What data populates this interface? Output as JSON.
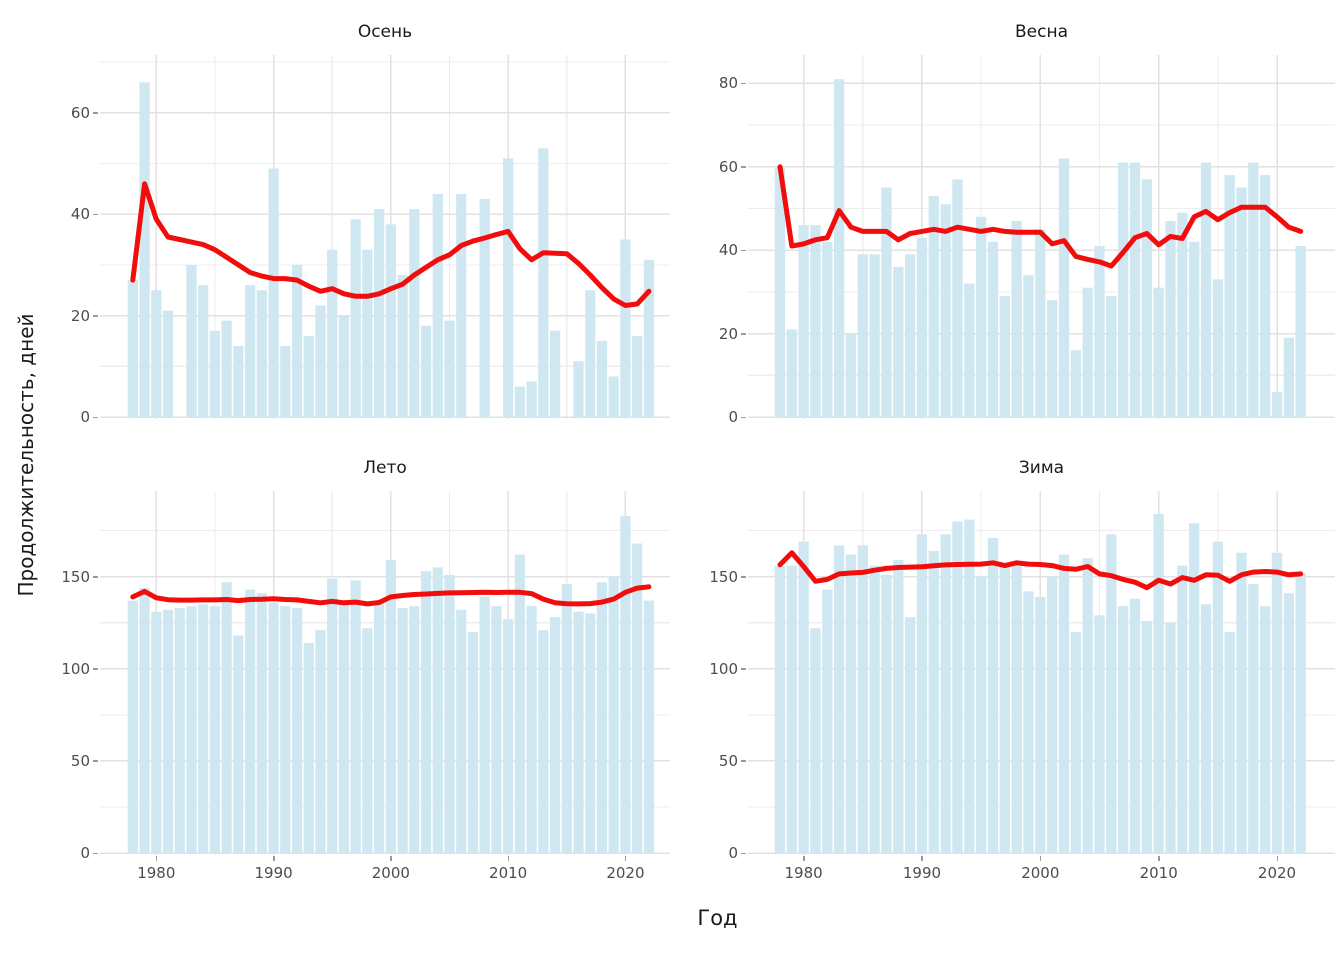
{
  "figure": {
    "xlabel": "Год",
    "ylabel": "Продолжительность, дней",
    "colors": {
      "bar": "#cfe7f1",
      "line": "#f20d0d",
      "grid_major": "#e2e2e2",
      "grid_minor": "#ededee",
      "axis_text": "#4d4d4d",
      "title_text": "#1b1b1b",
      "tick_mark": "#9a9a9a",
      "background": "#ffffff"
    }
  },
  "chart_data": [
    {
      "type": "bar",
      "facet": "Осень",
      "position": "top-left",
      "xlabel": "Год",
      "ylabel": "Продолжительность, дней",
      "legend": "none",
      "grid": "on",
      "years": [
        1978,
        1979,
        1980,
        1981,
        1982,
        1983,
        1984,
        1985,
        1986,
        1987,
        1988,
        1989,
        1990,
        1991,
        1992,
        1993,
        1994,
        1995,
        1996,
        1997,
        1998,
        1999,
        2000,
        2001,
        2002,
        2003,
        2004,
        2005,
        2006,
        2007,
        2008,
        2009,
        2010,
        2011,
        2012,
        2013,
        2014,
        2015,
        2016,
        2017,
        2018,
        2019,
        2020,
        2021,
        2022
      ],
      "bar_values": [
        27,
        66,
        25,
        21,
        null,
        30,
        26,
        17,
        19,
        14,
        26,
        25,
        49,
        14,
        30,
        16,
        22,
        33,
        20,
        39,
        33,
        41,
        38,
        28,
        41,
        18,
        44,
        19,
        44,
        null,
        43,
        null,
        51,
        6,
        7,
        53,
        17,
        null,
        11,
        25,
        15,
        8,
        35,
        16,
        31
      ],
      "trend_values": [
        27,
        46,
        39,
        35.5,
        35,
        34.5,
        34,
        33,
        31.5,
        30,
        28.5,
        27.8,
        27.3,
        27.3,
        27,
        25.8,
        24.8,
        25.3,
        24.3,
        23.8,
        23.8,
        24.3,
        25.3,
        26.2,
        28,
        29.5,
        31,
        32,
        33.8,
        34.7,
        35.3,
        36,
        36.6,
        33.2,
        31,
        32.4,
        32.3,
        32.2,
        30.3,
        28,
        25.5,
        23.3,
        22,
        22.3,
        24.8
      ],
      "ylim": [
        0,
        71.4
      ],
      "yticks": [
        0,
        20,
        40,
        60
      ],
      "xlim": [
        1975.2,
        2023.8
      ],
      "xticks": [
        1980,
        1990,
        2000,
        2010,
        2020
      ],
      "xminor": [
        1985,
        1995,
        2005,
        2015
      ]
    },
    {
      "type": "bar",
      "facet": "Весна",
      "position": "top-right",
      "xlabel": "Год",
      "ylabel": "Продолжительность, дней",
      "legend": "none",
      "grid": "on",
      "years": [
        1978,
        1979,
        1980,
        1981,
        1982,
        1983,
        1984,
        1985,
        1986,
        1987,
        1988,
        1989,
        1990,
        1991,
        1992,
        1993,
        1994,
        1995,
        1996,
        1997,
        1998,
        1999,
        2000,
        2001,
        2002,
        2003,
        2004,
        2005,
        2006,
        2007,
        2008,
        2009,
        2010,
        2011,
        2012,
        2013,
        2014,
        2015,
        2016,
        2017,
        2018,
        2019,
        2020,
        2021,
        2022
      ],
      "bar_values": [
        60,
        21,
        46,
        46,
        42,
        81,
        20,
        39,
        39,
        55,
        36,
        39,
        43,
        53,
        51,
        57,
        32,
        48,
        42,
        29,
        47,
        34,
        45,
        28,
        62,
        16,
        31,
        41,
        29,
        61,
        61,
        57,
        31,
        47,
        49,
        42,
        61,
        33,
        58,
        55,
        61,
        58,
        6,
        19,
        41
      ],
      "trend_values": [
        60,
        41,
        41.5,
        42.5,
        43,
        49.5,
        45.5,
        44.5,
        44.5,
        44.5,
        42.5,
        44,
        44.5,
        45,
        44.5,
        45.5,
        45,
        44.5,
        45,
        44.5,
        44.3,
        44.3,
        44.3,
        41.5,
        42.3,
        38.5,
        37.8,
        37.2,
        36.2,
        39.5,
        43,
        44,
        41.3,
        43.3,
        42.8,
        48,
        49.3,
        47.3,
        49,
        50.3,
        50.3,
        50.3,
        48,
        45.5,
        44.5
      ],
      "ylim": [
        0,
        86.8
      ],
      "yticks": [
        0,
        20,
        40,
        60,
        80
      ],
      "xlim": [
        1975.3,
        2024.9
      ],
      "xticks": [
        1980,
        1990,
        2000,
        2010,
        2020
      ],
      "xminor": [
        1985,
        1995,
        2005,
        2015
      ]
    },
    {
      "type": "bar",
      "facet": "Лето",
      "position": "bottom-left",
      "xlabel": "Год",
      "ylabel": "Продолжительность, дней",
      "legend": "none",
      "grid": "on",
      "years": [
        1978,
        1979,
        1980,
        1981,
        1982,
        1983,
        1984,
        1985,
        1986,
        1987,
        1988,
        1989,
        1990,
        1991,
        1992,
        1993,
        1994,
        1995,
        1996,
        1997,
        1998,
        1999,
        2000,
        2001,
        2002,
        2003,
        2004,
        2005,
        2006,
        2007,
        2008,
        2009,
        2010,
        2011,
        2012,
        2013,
        2014,
        2015,
        2016,
        2017,
        2018,
        2019,
        2020,
        2021,
        2022
      ],
      "bar_values": [
        137,
        144,
        131,
        132,
        133,
        134,
        135,
        134,
        147,
        118,
        143,
        141,
        136,
        134,
        133,
        114,
        121,
        149,
        136,
        148,
        122,
        137,
        159,
        133,
        134,
        153,
        155,
        151,
        132,
        120,
        139,
        134,
        127,
        162,
        134,
        121,
        128,
        146,
        131,
        130,
        147,
        150,
        183,
        168,
        137
      ],
      "trend_values": [
        139,
        142,
        138.5,
        137.5,
        137.3,
        137.3,
        137.4,
        137.4,
        137.6,
        137,
        137.6,
        137.7,
        138,
        137.6,
        137.4,
        136.6,
        135.8,
        136.6,
        135.8,
        136.2,
        135.2,
        136,
        139,
        139.8,
        140.3,
        140.6,
        140.9,
        141.2,
        141.3,
        141.4,
        141.5,
        141.4,
        141.5,
        141.5,
        140.8,
        137.8,
        135.8,
        135.3,
        135.2,
        135.4,
        136.2,
        137.8,
        141.5,
        143.8,
        144.5
      ],
      "ylim": [
        0,
        196.5
      ],
      "yticks": [
        0,
        50,
        100,
        150
      ],
      "xlim": [
        1975.2,
        2023.8
      ],
      "xticks": [
        1980,
        1990,
        2000,
        2010,
        2020
      ],
      "xminor": [
        1985,
        1995,
        2005,
        2015
      ]
    },
    {
      "type": "bar",
      "facet": "Зима",
      "position": "bottom-right",
      "xlabel": "Год",
      "ylabel": "Продолжительность, дней",
      "legend": "none",
      "grid": "on",
      "years": [
        1978,
        1979,
        1980,
        1981,
        1982,
        1983,
        1984,
        1985,
        1986,
        1987,
        1988,
        1989,
        1990,
        1991,
        1992,
        1993,
        1994,
        1995,
        1996,
        1997,
        1998,
        1999,
        2000,
        2001,
        2002,
        2003,
        2004,
        2005,
        2006,
        2007,
        2008,
        2009,
        2010,
        2011,
        2012,
        2013,
        2014,
        2015,
        2016,
        2017,
        2018,
        2019,
        2020,
        2021,
        2022
      ],
      "bar_values": [
        156,
        156,
        169,
        122,
        143,
        167,
        162,
        167,
        156,
        151,
        159,
        128,
        173,
        164,
        173,
        180,
        181,
        150,
        171,
        156,
        156,
        142,
        139,
        150,
        162,
        120,
        160,
        129,
        173,
        134,
        138,
        126,
        184,
        125,
        156,
        179,
        135,
        169,
        120,
        163,
        146,
        134,
        163,
        141,
        152
      ],
      "trend_values": [
        156.5,
        163,
        155.5,
        147.5,
        148.5,
        151.5,
        152,
        152.3,
        153.5,
        154.5,
        155,
        155.2,
        155.4,
        155.9,
        156.4,
        156.6,
        156.7,
        156.8,
        157.5,
        156,
        157.5,
        156.8,
        156.6,
        156,
        154.5,
        154,
        155.5,
        151.5,
        150.5,
        148.5,
        147,
        144,
        148,
        146,
        149.5,
        148,
        151,
        150.8,
        147.5,
        151,
        152.5,
        152.8,
        152.5,
        151,
        151.5
      ],
      "ylim": [
        0,
        196.5
      ],
      "yticks": [
        0,
        50,
        100,
        150
      ],
      "xlim": [
        1975.3,
        2024.9
      ],
      "xticks": [
        1980,
        1990,
        2000,
        2010,
        2020
      ],
      "xminor": [
        1985,
        1995,
        2005,
        2015
      ]
    }
  ]
}
